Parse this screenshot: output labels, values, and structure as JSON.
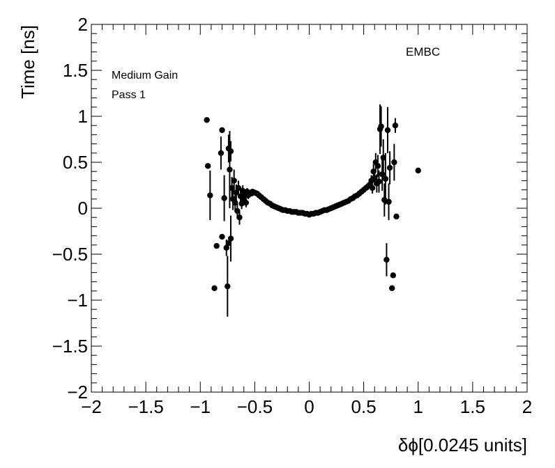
{
  "chart_data": {
    "type": "scatter",
    "title": "",
    "xlabel": "δϕ[0.0245 units]",
    "ylabel": "Time [ns]",
    "xlim": [
      -2,
      2
    ],
    "ylim": [
      -2,
      2
    ],
    "x_major_ticks": [
      -2,
      -1.5,
      -1,
      -0.5,
      0,
      0.5,
      1,
      1.5,
      2
    ],
    "x_tick_labels": [
      "−2",
      "−1.5",
      "−1",
      "−0.5",
      "0",
      "0.5",
      "1",
      "1.5",
      "2"
    ],
    "y_major_ticks": [
      -2,
      -1.5,
      -1,
      -0.5,
      0,
      0.5,
      1,
      1.5,
      2
    ],
    "y_tick_labels": [
      "−2",
      "−1.5",
      "−1",
      "−0.5",
      "0",
      "0.5",
      "1",
      "1.5",
      "2"
    ],
    "grid": false,
    "marker_color": "#000000",
    "annotations": {
      "gain": "Medium Gain",
      "pass": "Pass 1",
      "detector": "EMBC"
    },
    "points": [
      {
        "x": -0.94,
        "y": 0.96,
        "err": 0.0
      },
      {
        "x": -0.93,
        "y": 0.46,
        "err": 0.0
      },
      {
        "x": -0.91,
        "y": 0.14,
        "err": 0.27
      },
      {
        "x": -0.87,
        "y": -0.87,
        "err": 0.0
      },
      {
        "x": -0.85,
        "y": -0.41,
        "err": 0.0
      },
      {
        "x": -0.81,
        "y": 0.6,
        "err": 0.18
      },
      {
        "x": -0.8,
        "y": 0.85,
        "err": 0.0
      },
      {
        "x": -0.8,
        "y": -0.31,
        "err": 0.0
      },
      {
        "x": -0.78,
        "y": 0.11,
        "err": 0.25
      },
      {
        "x": -0.76,
        "y": -0.43,
        "err": 0.09
      },
      {
        "x": -0.75,
        "y": -0.85,
        "err": 0.33
      },
      {
        "x": -0.74,
        "y": 0.65,
        "err": 0.15
      },
      {
        "x": -0.74,
        "y": -0.38,
        "err": 0.0
      },
      {
        "x": -0.73,
        "y": 0.42,
        "err": 0.42
      },
      {
        "x": -0.72,
        "y": 0.62,
        "err": 0.11
      },
      {
        "x": -0.72,
        "y": -0.33,
        "err": 0.25
      },
      {
        "x": -0.71,
        "y": 0.22,
        "err": 0.12
      },
      {
        "x": -0.7,
        "y": 0.1,
        "err": 0.12
      },
      {
        "x": -0.69,
        "y": 0.3,
        "err": 0.12
      },
      {
        "x": -0.68,
        "y": 0.06,
        "err": 0.09
      },
      {
        "x": -0.67,
        "y": 0.17,
        "err": 0.09
      },
      {
        "x": -0.66,
        "y": -0.03,
        "err": 0.08
      },
      {
        "x": -0.65,
        "y": 0.22,
        "err": 0.08
      },
      {
        "x": -0.64,
        "y": -0.1,
        "err": 0.08
      },
      {
        "x": -0.63,
        "y": 0.13,
        "err": 0.08
      },
      {
        "x": -0.62,
        "y": 0.05,
        "err": 0.06
      },
      {
        "x": -0.61,
        "y": 0.19,
        "err": 0.06
      },
      {
        "x": -0.6,
        "y": 0.1,
        "err": 0.05
      },
      {
        "x": -0.59,
        "y": 0.15,
        "err": 0.05
      },
      {
        "x": -0.58,
        "y": 0.06,
        "err": 0.05
      },
      {
        "x": -0.57,
        "y": 0.18,
        "err": 0.04
      },
      {
        "x": -0.56,
        "y": 0.14,
        "err": 0.04
      },
      {
        "x": -0.55,
        "y": 0.17,
        "err": 0.03
      },
      {
        "x": -0.53,
        "y": 0.16,
        "err": 0.02
      },
      {
        "x": -0.52,
        "y": 0.18,
        "err": 0.02
      },
      {
        "x": -0.5,
        "y": 0.17,
        "err": 0.02
      },
      {
        "x": -0.48,
        "y": 0.16,
        "err": 0.01
      },
      {
        "x": -0.46,
        "y": 0.14,
        "err": 0.01
      },
      {
        "x": -0.44,
        "y": 0.12,
        "err": 0.01
      },
      {
        "x": -0.42,
        "y": 0.1,
        "err": 0.01
      },
      {
        "x": -0.4,
        "y": 0.08,
        "err": 0.01
      },
      {
        "x": -0.38,
        "y": 0.06,
        "err": 0.01
      },
      {
        "x": -0.36,
        "y": 0.05,
        "err": 0.01
      },
      {
        "x": -0.34,
        "y": 0.03,
        "err": 0.01
      },
      {
        "x": -0.32,
        "y": 0.02,
        "err": 0.01
      },
      {
        "x": -0.3,
        "y": 0.01,
        "err": 0.01
      },
      {
        "x": -0.28,
        "y": 0.0,
        "err": 0.01
      },
      {
        "x": -0.26,
        "y": -0.01,
        "err": 0.01
      },
      {
        "x": -0.24,
        "y": -0.02,
        "err": 0.01
      },
      {
        "x": -0.22,
        "y": -0.02,
        "err": 0.01
      },
      {
        "x": -0.2,
        "y": -0.03,
        "err": 0.01
      },
      {
        "x": -0.18,
        "y": -0.03,
        "err": 0.01
      },
      {
        "x": -0.16,
        "y": -0.04,
        "err": 0.01
      },
      {
        "x": -0.14,
        "y": -0.04,
        "err": 0.01
      },
      {
        "x": -0.12,
        "y": -0.04,
        "err": 0.01
      },
      {
        "x": -0.1,
        "y": -0.05,
        "err": 0.01
      },
      {
        "x": -0.08,
        "y": -0.05,
        "err": 0.01
      },
      {
        "x": -0.06,
        "y": -0.05,
        "err": 0.01
      },
      {
        "x": -0.04,
        "y": -0.06,
        "err": 0.01
      },
      {
        "x": -0.02,
        "y": -0.06,
        "err": 0.01
      },
      {
        "x": 0.0,
        "y": -0.07,
        "err": 0.01
      },
      {
        "x": 0.02,
        "y": -0.06,
        "err": 0.01
      },
      {
        "x": 0.04,
        "y": -0.06,
        "err": 0.01
      },
      {
        "x": 0.06,
        "y": -0.05,
        "err": 0.01
      },
      {
        "x": 0.08,
        "y": -0.05,
        "err": 0.01
      },
      {
        "x": 0.1,
        "y": -0.04,
        "err": 0.01
      },
      {
        "x": 0.12,
        "y": -0.03,
        "err": 0.01
      },
      {
        "x": 0.14,
        "y": -0.02,
        "err": 0.01
      },
      {
        "x": 0.16,
        "y": -0.02,
        "err": 0.01
      },
      {
        "x": 0.18,
        "y": -0.01,
        "err": 0.01
      },
      {
        "x": 0.2,
        "y": 0.0,
        "err": 0.01
      },
      {
        "x": 0.22,
        "y": 0.01,
        "err": 0.01
      },
      {
        "x": 0.24,
        "y": 0.02,
        "err": 0.01
      },
      {
        "x": 0.26,
        "y": 0.03,
        "err": 0.01
      },
      {
        "x": 0.28,
        "y": 0.04,
        "err": 0.01
      },
      {
        "x": 0.3,
        "y": 0.05,
        "err": 0.01
      },
      {
        "x": 0.32,
        "y": 0.06,
        "err": 0.01
      },
      {
        "x": 0.34,
        "y": 0.07,
        "err": 0.01
      },
      {
        "x": 0.36,
        "y": 0.08,
        "err": 0.01
      },
      {
        "x": 0.38,
        "y": 0.1,
        "err": 0.01
      },
      {
        "x": 0.4,
        "y": 0.11,
        "err": 0.01
      },
      {
        "x": 0.42,
        "y": 0.13,
        "err": 0.02
      },
      {
        "x": 0.44,
        "y": 0.14,
        "err": 0.02
      },
      {
        "x": 0.46,
        "y": 0.16,
        "err": 0.02
      },
      {
        "x": 0.48,
        "y": 0.18,
        "err": 0.02
      },
      {
        "x": 0.5,
        "y": 0.2,
        "err": 0.03
      },
      {
        "x": 0.52,
        "y": 0.22,
        "err": 0.03
      },
      {
        "x": 0.54,
        "y": 0.24,
        "err": 0.04
      },
      {
        "x": 0.56,
        "y": 0.26,
        "err": 0.05
      },
      {
        "x": 0.57,
        "y": 0.3,
        "err": 0.06
      },
      {
        "x": 0.58,
        "y": 0.22,
        "err": 0.06
      },
      {
        "x": 0.59,
        "y": 0.4,
        "err": 0.08
      },
      {
        "x": 0.6,
        "y": 0.33,
        "err": 0.08
      },
      {
        "x": 0.61,
        "y": 0.5,
        "err": 0.1
      },
      {
        "x": 0.62,
        "y": 0.27,
        "err": 0.1
      },
      {
        "x": 0.63,
        "y": 0.46,
        "err": 0.12
      },
      {
        "x": 0.64,
        "y": 0.29,
        "err": 0.12
      },
      {
        "x": 0.65,
        "y": 0.86,
        "err": 0.27
      },
      {
        "x": 0.66,
        "y": 0.89,
        "err": 0.22
      },
      {
        "x": 0.67,
        "y": 0.37,
        "err": 0.18
      },
      {
        "x": 0.68,
        "y": 0.55,
        "err": 0.2
      },
      {
        "x": 0.69,
        "y": 0.09,
        "err": 0.18
      },
      {
        "x": 0.7,
        "y": 0.32,
        "err": 0.28
      },
      {
        "x": 0.71,
        "y": -0.56,
        "err": 0.18
      },
      {
        "x": 0.72,
        "y": 0.85,
        "err": 0.25
      },
      {
        "x": 0.73,
        "y": 0.07,
        "err": 0.2
      },
      {
        "x": 0.74,
        "y": 0.44,
        "err": 0.18
      },
      {
        "x": 0.76,
        "y": -0.87,
        "err": 0.0
      },
      {
        "x": 0.77,
        "y": -0.73,
        "err": 0.0
      },
      {
        "x": 0.78,
        "y": 0.5,
        "err": 0.2
      },
      {
        "x": 0.79,
        "y": 0.9,
        "err": 0.08
      },
      {
        "x": 0.8,
        "y": -0.09,
        "err": 0.0
      },
      {
        "x": 1.0,
        "y": 0.41,
        "err": 0.0
      }
    ]
  }
}
